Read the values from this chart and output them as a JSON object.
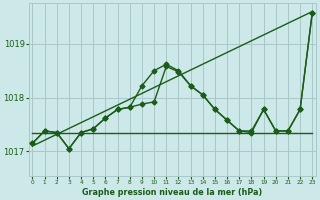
{
  "title": "Graphe pression niveau de la mer (hPa)",
  "background_color": "#cce8e8",
  "grid_color": "#aac8c8",
  "line_color": "#1a5c1a",
  "x_ticks": [
    0,
    1,
    2,
    3,
    4,
    5,
    6,
    7,
    8,
    9,
    10,
    11,
    12,
    13,
    14,
    15,
    16,
    17,
    18,
    19,
    20,
    21,
    22,
    23
  ],
  "y_ticks": [
    1017,
    1018,
    1019
  ],
  "ylim": [
    1016.55,
    1019.75
  ],
  "xlim": [
    -0.3,
    23.3
  ],
  "series": [
    {
      "x": [
        0,
        23
      ],
      "y": [
        1017.35,
        1017.35
      ],
      "marker": null,
      "markersize": 0,
      "linewidth": 1.0,
      "linestyle": "-"
    },
    {
      "x": [
        0,
        23
      ],
      "y": [
        1017.1,
        1019.6
      ],
      "marker": null,
      "markersize": 0,
      "linewidth": 1.0,
      "linestyle": "-"
    },
    {
      "x": [
        0,
        1,
        2,
        3,
        4,
        5,
        6,
        7,
        8,
        9,
        10,
        11,
        12,
        13,
        14,
        15,
        16,
        17,
        18,
        19,
        20,
        21,
        22,
        23
      ],
      "y": [
        1017.15,
        1017.38,
        1017.35,
        1017.05,
        1017.35,
        1017.42,
        1017.62,
        1017.78,
        1017.82,
        1018.22,
        1018.5,
        1018.62,
        1018.5,
        1018.22,
        1018.05,
        1017.78,
        1017.58,
        1017.38,
        1017.35,
        1017.78,
        1017.38,
        1017.38,
        1017.78,
        1019.58
      ],
      "marker": "D",
      "markersize": 2.5,
      "linewidth": 1.0,
      "linestyle": "-"
    },
    {
      "x": [
        0,
        1,
        2,
        3,
        4,
        5,
        6,
        7,
        8,
        9,
        10,
        11,
        12,
        13,
        14,
        15,
        16,
        17,
        18,
        19,
        20,
        21,
        22,
        23
      ],
      "y": [
        1017.15,
        1017.38,
        1017.35,
        1017.05,
        1017.35,
        1017.42,
        1017.62,
        1017.78,
        1017.82,
        1017.88,
        1017.92,
        1018.58,
        1018.48,
        1018.22,
        1018.05,
        1017.78,
        1017.58,
        1017.38,
        1017.38,
        1017.78,
        1017.38,
        1017.38,
        1017.78,
        1019.58
      ],
      "marker": "D",
      "markersize": 2.5,
      "linewidth": 1.0,
      "linestyle": "-"
    }
  ]
}
